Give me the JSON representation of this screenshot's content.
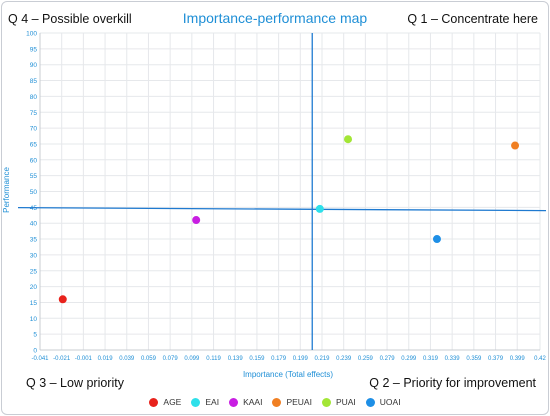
{
  "quadrants": {
    "q4": "Q 4 – Possible overkill",
    "q1": "Q 1 – Concentrate here",
    "q3": "Q 3 – Low priority",
    "q2": "Q 2 – Priority for improvement"
  },
  "chart_data": {
    "type": "scatter",
    "title": "Importance-performance map",
    "xlabel": "Importance (Total effects)",
    "ylabel": "Performance",
    "xlim": [
      -0.041,
      0.42
    ],
    "ylim": [
      0,
      100
    ],
    "x_ticks": [
      "-0.041",
      "-0.021",
      "-0.001",
      "0.019",
      "0.039",
      "0.059",
      "0.079",
      "0.099",
      "0.119",
      "0.139",
      "0.159",
      "0.179",
      "0.199",
      "0.219",
      "0.239",
      "0.259",
      "0.279",
      "0.299",
      "0.319",
      "0.339",
      "0.359",
      "0.379",
      "0.399",
      "0.42"
    ],
    "y_ticks": [
      0,
      5,
      10,
      15,
      20,
      25,
      30,
      35,
      40,
      45,
      50,
      55,
      60,
      65,
      70,
      75,
      80,
      85,
      90,
      95,
      100
    ],
    "grid": true,
    "legend_position": "bottom",
    "reference_lines": {
      "x": 0.21,
      "y": 44.6
    },
    "series": [
      {
        "name": "AGE",
        "color": "#e8221c",
        "x": -0.02,
        "y": 16.0
      },
      {
        "name": "EAI",
        "color": "#2ee0ea",
        "x": 0.217,
        "y": 44.5
      },
      {
        "name": "KAAI",
        "color": "#c81ee2",
        "x": 0.103,
        "y": 41.0
      },
      {
        "name": "PEUAI",
        "color": "#f07f22",
        "x": 0.397,
        "y": 64.5
      },
      {
        "name": "PUAI",
        "color": "#a3e636",
        "x": 0.243,
        "y": 66.5
      },
      {
        "name": "UOAI",
        "color": "#1e8fe6",
        "x": 0.325,
        "y": 35.0
      }
    ]
  }
}
